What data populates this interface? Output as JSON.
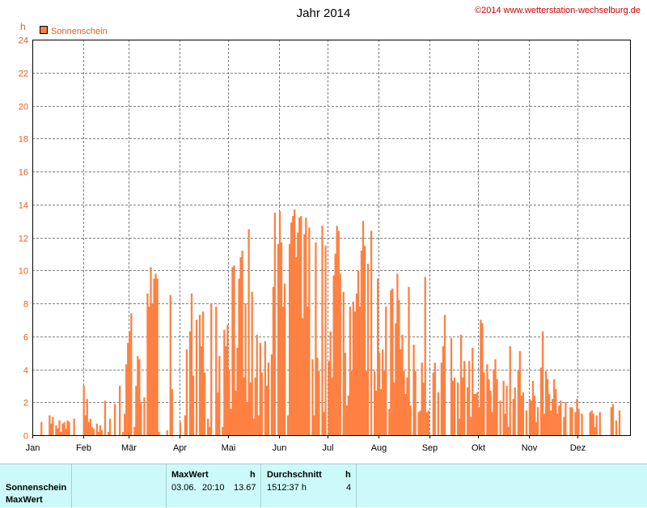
{
  "chart_data": {
    "type": "bar",
    "title": "Jahr 2014",
    "copyright": "©2014 www.wetterstation-wechselburg.de",
    "ylabel": "h",
    "ylim": [
      0,
      24
    ],
    "yticks": [
      0,
      2,
      4,
      6,
      8,
      10,
      12,
      14,
      16,
      18,
      20,
      22,
      24
    ],
    "months": [
      "Jan",
      "Feb",
      "Mär",
      "Apr",
      "Mai",
      "Jun",
      "Jul",
      "Aug",
      "Sep",
      "Okt",
      "Nov",
      "Dez"
    ],
    "grid": true,
    "legend_position": "top-left",
    "colors": {
      "bar": "#ff8040",
      "tick_label": "#e06020",
      "grid": "#808080",
      "title": "#000000",
      "copyright": "#cc0000"
    },
    "series": [
      {
        "name": "Sonnenschein",
        "values": [
          0.0,
          0.0,
          0.0,
          0.0,
          0.0,
          0.8,
          0.0,
          0.0,
          0.0,
          0.0,
          1.2,
          0.7,
          1.1,
          0.0,
          0.6,
          0.4,
          0.9,
          0.2,
          0.7,
          0.8,
          0.4,
          0.9,
          0.8,
          0.0,
          0.0,
          1.0,
          0.0,
          0.0,
          0.0,
          0.0,
          0.0,
          3.0,
          1.2,
          2.2,
          0.8,
          1.0,
          0.5,
          0.4,
          0.0,
          0.7,
          0.2,
          0.6,
          0.3,
          0.0,
          2.1,
          0.0,
          0.2,
          1.0,
          0.0,
          0.0,
          1.9,
          0.0,
          0.0,
          3.0,
          0.0,
          0.2,
          1.3,
          4.3,
          5.6,
          6.3,
          7.4,
          0.0,
          0.5,
          3.0,
          4.8,
          4.6,
          2.0,
          0.0,
          2.3,
          0.0,
          8.6,
          7.8,
          10.2,
          8.0,
          9.5,
          9.8,
          9.5,
          0.2,
          0.0,
          0.0,
          0.0,
          0.0,
          0.3,
          0.0,
          8.5,
          2.8,
          0.0,
          0.0,
          0.0,
          0.0,
          0.8,
          0.0,
          0.0,
          1.2,
          5.2,
          0.0,
          6.3,
          8.6,
          3.6,
          0.0,
          7.0,
          0.0,
          7.3,
          5.4,
          7.5,
          3.8,
          0.0,
          1.0,
          0.5,
          8.0,
          0.0,
          0.0,
          7.8,
          2.6,
          4.8,
          0.0,
          0.5,
          6.4,
          5.4,
          6.7,
          4.0,
          1.6,
          10.2,
          10.3,
          2.7,
          5.3,
          9.5,
          10.8,
          11.2,
          3.5,
          8.0,
          2.0,
          12.5,
          3.2,
          8.7,
          1.0,
          3.5,
          6.1,
          1.2,
          5.6,
          3.8,
          0.0,
          5.7,
          3.0,
          4.4,
          0.0,
          4.9,
          9.0,
          13.5,
          0.0,
          11.6,
          13.6,
          11.7,
          7.8,
          9.2,
          0.0,
          1.2,
          11.6,
          12.9,
          13.3,
          13.7,
          10.8,
          12.3,
          13.2,
          13.3,
          7.1,
          12.2,
          13.2,
          7.8,
          12.6,
          0.0,
          4.6,
          1.2,
          11.7,
          4.7,
          3.9,
          0.0,
          12.7,
          1.4,
          11.5,
          0.0,
          4.5,
          6.3,
          3.5,
          9.7,
          11.0,
          12.7,
          12.4,
          9.8,
          0.0,
          8.7,
          5.0,
          1.8,
          2.4,
          7.8,
          3.9,
          8.1,
          7.5,
          8.6,
          10.0,
          7.8,
          11.2,
          13.0,
          11.5,
          3.9,
          10.4,
          0.0,
          12.4,
          0.0,
          3.9,
          2.7,
          9.5,
          5.0,
          2.8,
          5.2,
          3.9,
          7.8,
          0.0,
          1.6,
          8.8,
          8.9,
          3.2,
          6.8,
          9.8,
          8.2,
          5.2,
          6.1,
          3.9,
          2.5,
          3.5,
          9.0,
          1.8,
          0.0,
          5.5,
          3.9,
          0.0,
          1.4,
          1.5,
          4.4,
          3.2,
          9.6,
          1.4,
          1.5,
          0.0,
          0.0,
          3.8,
          4.4,
          0.0,
          2.6,
          0.0,
          4.4,
          5.4,
          7.3,
          0.0,
          0.0,
          0.0,
          5.9,
          3.3,
          3.5,
          0.0,
          3.2,
          1.0,
          6.1,
          3.5,
          4.5,
          0.0,
          2.9,
          4.5,
          1.1,
          5.3,
          2.5,
          2.5,
          2.6,
          1.7,
          7.0,
          6.8,
          3.8,
          0.0,
          4.3,
          3.4,
          2.7,
          1.4,
          4.0,
          4.6,
          3.4,
          0.0,
          2.1,
          0.0,
          3.3,
          1.3,
          3.0,
          0.5,
          5.4,
          0.0,
          2.2,
          2.9,
          0.0,
          3.9,
          5.1,
          2.4,
          2.6,
          0.0,
          1.5,
          0.0,
          2.2,
          2.1,
          3.3,
          2.4,
          0.8,
          1.7,
          0.0,
          4.1,
          6.3,
          1.3,
          3.9,
          3.4,
          2.5,
          1.5,
          2.2,
          3.4,
          2.8,
          1.3,
          1.8,
          2.1,
          0.0,
          1.1,
          2.0,
          0.0,
          0.0,
          1.7,
          1.7,
          0.0,
          1.4,
          2.2,
          1.6,
          0.0,
          1.3,
          0.0,
          0.0,
          0.0,
          0.0,
          1.4,
          1.5,
          1.3,
          0.5,
          1.2,
          0.0,
          1.4,
          0.0,
          0.0,
          0.0,
          0.0,
          0.0,
          0.0,
          1.7,
          1.9,
          0.0,
          0.9,
          0.0,
          1.5,
          0.0,
          0.0,
          0.0,
          0.0,
          0.0,
          0.0
        ]
      }
    ],
    "units": "h"
  },
  "footer": {
    "row1_label": "Sonnenschein",
    "row2_label": "MaxWert",
    "maxwert_header": "MaxWert",
    "maxwert_unit": "h",
    "maxwert_date": "03.06.",
    "maxwert_time": "20:10",
    "maxwert_value": "13.67",
    "durchschnitt_header": "Durchschnitt",
    "durchschnitt_unit": "h",
    "durchschnitt_total": "1512:37 h",
    "durchschnitt_value": "4"
  }
}
